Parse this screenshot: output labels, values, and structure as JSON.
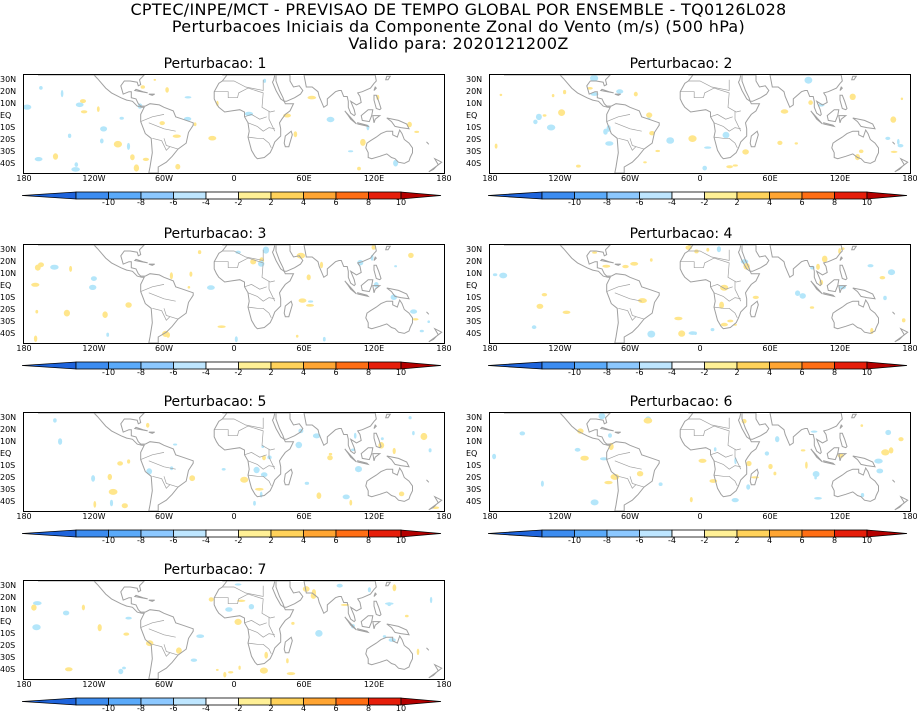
{
  "header": {
    "line1": "CPTEC/INPE/MCT - PREVISAO DE TEMPO GLOBAL POR ENSEMBLE - TQ0126L028",
    "line2": "Perturbacoes Iniciais da Componente Zonal do Vento (m/s) (500 hPa)",
    "line3": "Valido para: 2020121200Z"
  },
  "panels": [
    {
      "title": "Perturbacao: 1"
    },
    {
      "title": "Perturbacao: 2"
    },
    {
      "title": "Perturbacao: 3"
    },
    {
      "title": "Perturbacao: 4"
    },
    {
      "title": "Perturbacao: 5"
    },
    {
      "title": "Perturbacao: 6"
    },
    {
      "title": "Perturbacao: 7"
    }
  ],
  "lat_labels": [
    "30N",
    "20N",
    "10N",
    "EQ",
    "10S",
    "20S",
    "30S",
    "40S"
  ],
  "lon_labels": [
    "180",
    "120W",
    "60W",
    "0",
    "60E",
    "120E",
    "180"
  ],
  "colorbar": {
    "labels": [
      "-10",
      "-8",
      "-6",
      "-4",
      "-2",
      "2",
      "4",
      "6",
      "8",
      "10"
    ],
    "colors": [
      "#1e64dc",
      "#3c8cf0",
      "#5aaafa",
      "#8cc8ff",
      "#bee6ff",
      "#ffffff",
      "#fff096",
      "#ffd25a",
      "#ffa532",
      "#ff6e14",
      "#e61e0a",
      "#b40000"
    ]
  },
  "colors": {
    "negative_blob": "#b4e6fa",
    "positive_blob": "#ffe68c",
    "coastline": "#a0a0a0"
  }
}
